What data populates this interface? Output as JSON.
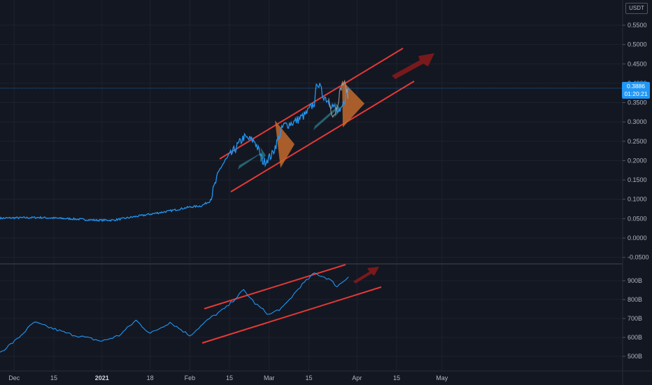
{
  "currency": "USDT",
  "last_price": "0.3886",
  "countdown": "01:20:21",
  "colors": {
    "background": "#131722",
    "price_line": "#2196f3",
    "channel": "#e53935",
    "projection_arrow": "#8b1a1a",
    "flag_orange": "#c46a2c",
    "flag_teal": "#2a6f7a",
    "bar_line": "#9e9e9e"
  },
  "chart_data": [
    {
      "type": "line",
      "name_hint": "main-price",
      "yaxis_ticks": [
        "0.5500",
        "0.5000",
        "0.4500",
        "0.4000",
        "0.3500",
        "0.3000",
        "0.2500",
        "0.2000",
        "0.1500",
        "0.1000",
        "0.0500",
        "0.0000",
        "-0.0500"
      ],
      "ylim": [
        -0.05,
        0.59
      ],
      "x_label_ticks": [
        "Dec",
        "15",
        "2021",
        "18",
        "Feb",
        "15",
        "Mar",
        "15",
        "Apr",
        "15",
        "May"
      ],
      "grid": true,
      "x": [
        "2020-11-26",
        "2020-12-01",
        "2020-12-10",
        "2020-12-20",
        "2020-12-30",
        "2021-01-05",
        "2021-01-15",
        "2021-01-25",
        "2021-02-01",
        "2021-02-05",
        "2021-02-08",
        "2021-02-12",
        "2021-02-16",
        "2021-02-20",
        "2021-02-24",
        "2021-02-27",
        "2021-03-02",
        "2021-03-06",
        "2021-03-10",
        "2021-03-14",
        "2021-03-17",
        "2021-03-18",
        "2021-03-20",
        "2021-03-23",
        "2021-03-26",
        "2021-03-29"
      ],
      "values": [
        0.051,
        0.052,
        0.053,
        0.05,
        0.046,
        0.046,
        0.058,
        0.07,
        0.08,
        0.083,
        0.095,
        0.185,
        0.22,
        0.26,
        0.25,
        0.195,
        0.215,
        0.29,
        0.3,
        0.32,
        0.35,
        0.405,
        0.37,
        0.345,
        0.32,
        0.387
      ]
    },
    {
      "type": "line",
      "name_hint": "market-cap",
      "yaxis_ticks": [
        "900B",
        "800B",
        "700B",
        "600B",
        "500B"
      ],
      "ylim": [
        440,
        1000
      ],
      "x": [
        "2020-11-26",
        "2020-12-02",
        "2020-12-08",
        "2020-12-14",
        "2020-12-20",
        "2020-12-26",
        "2021-01-01",
        "2021-01-07",
        "2021-01-13",
        "2021-01-18",
        "2021-01-25",
        "2021-02-01",
        "2021-02-08",
        "2021-02-14",
        "2021-02-20",
        "2021-02-24",
        "2021-03-01",
        "2021-03-06",
        "2021-03-12",
        "2021-03-17",
        "2021-03-22",
        "2021-03-25",
        "2021-03-29"
      ],
      "values": [
        520,
        590,
        680,
        650,
        620,
        600,
        580,
        610,
        690,
        620,
        680,
        610,
        700,
        760,
        850,
        780,
        720,
        760,
        870,
        940,
        910,
        870,
        920
      ]
    }
  ]
}
